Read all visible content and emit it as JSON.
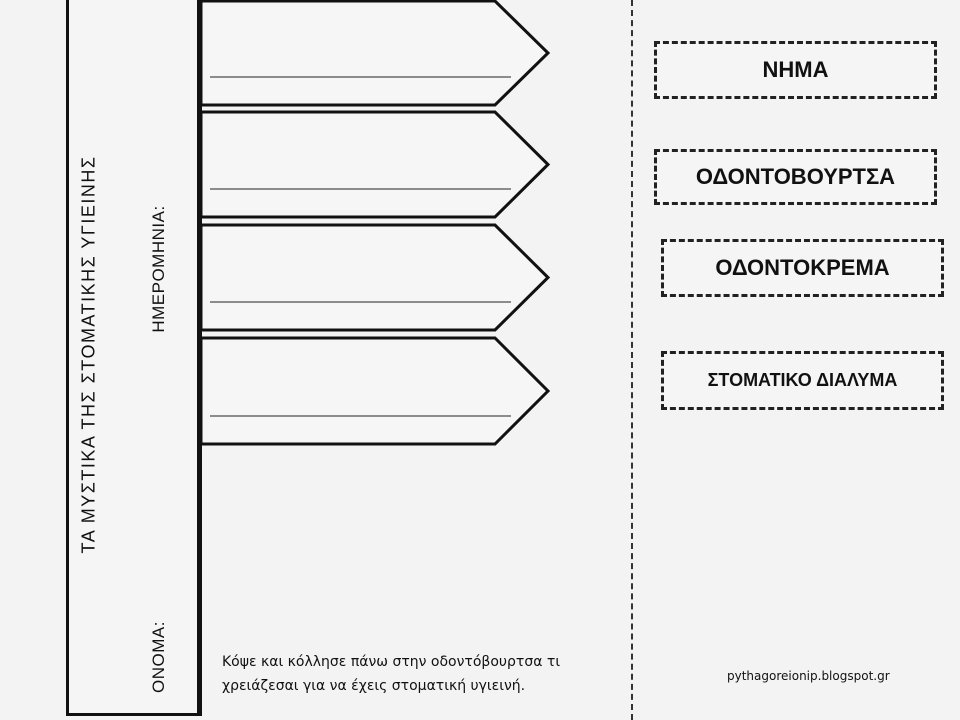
{
  "sidebar": {
    "title": "ΤΑ ΜΥΣΤΙΚΑ ΤΗΣ ΣΤΟΜΑΤΙΚΗΣ ΥΓΙΕΙΝΗΣ",
    "date_label": "ΗΜΕΡΟΜΗΝΙΑ:",
    "name_label": "ΟΝΟΜΑ:"
  },
  "arrows_count": 4,
  "word_cards": [
    {
      "label": "ΝΗΜΑ"
    },
    {
      "label": "ΟΔΟΝΤΟΒΟΥΡΤΣΑ"
    },
    {
      "label": "ΟΔΟΝΤΟΚΡΕΜΑ"
    },
    {
      "label": "ΣΤΟΜΑΤΙΚΟ ΔΙΑΛΥΜΑ"
    }
  ],
  "instructions": {
    "line1": "Κόψε και κόλλησε πάνω στην οδοντόβουρτσα τι",
    "line2": "χρειάζεσαι για να έχεις στοματική υγιεινή."
  },
  "credit": "pythagoreionip.blogspot.gr"
}
